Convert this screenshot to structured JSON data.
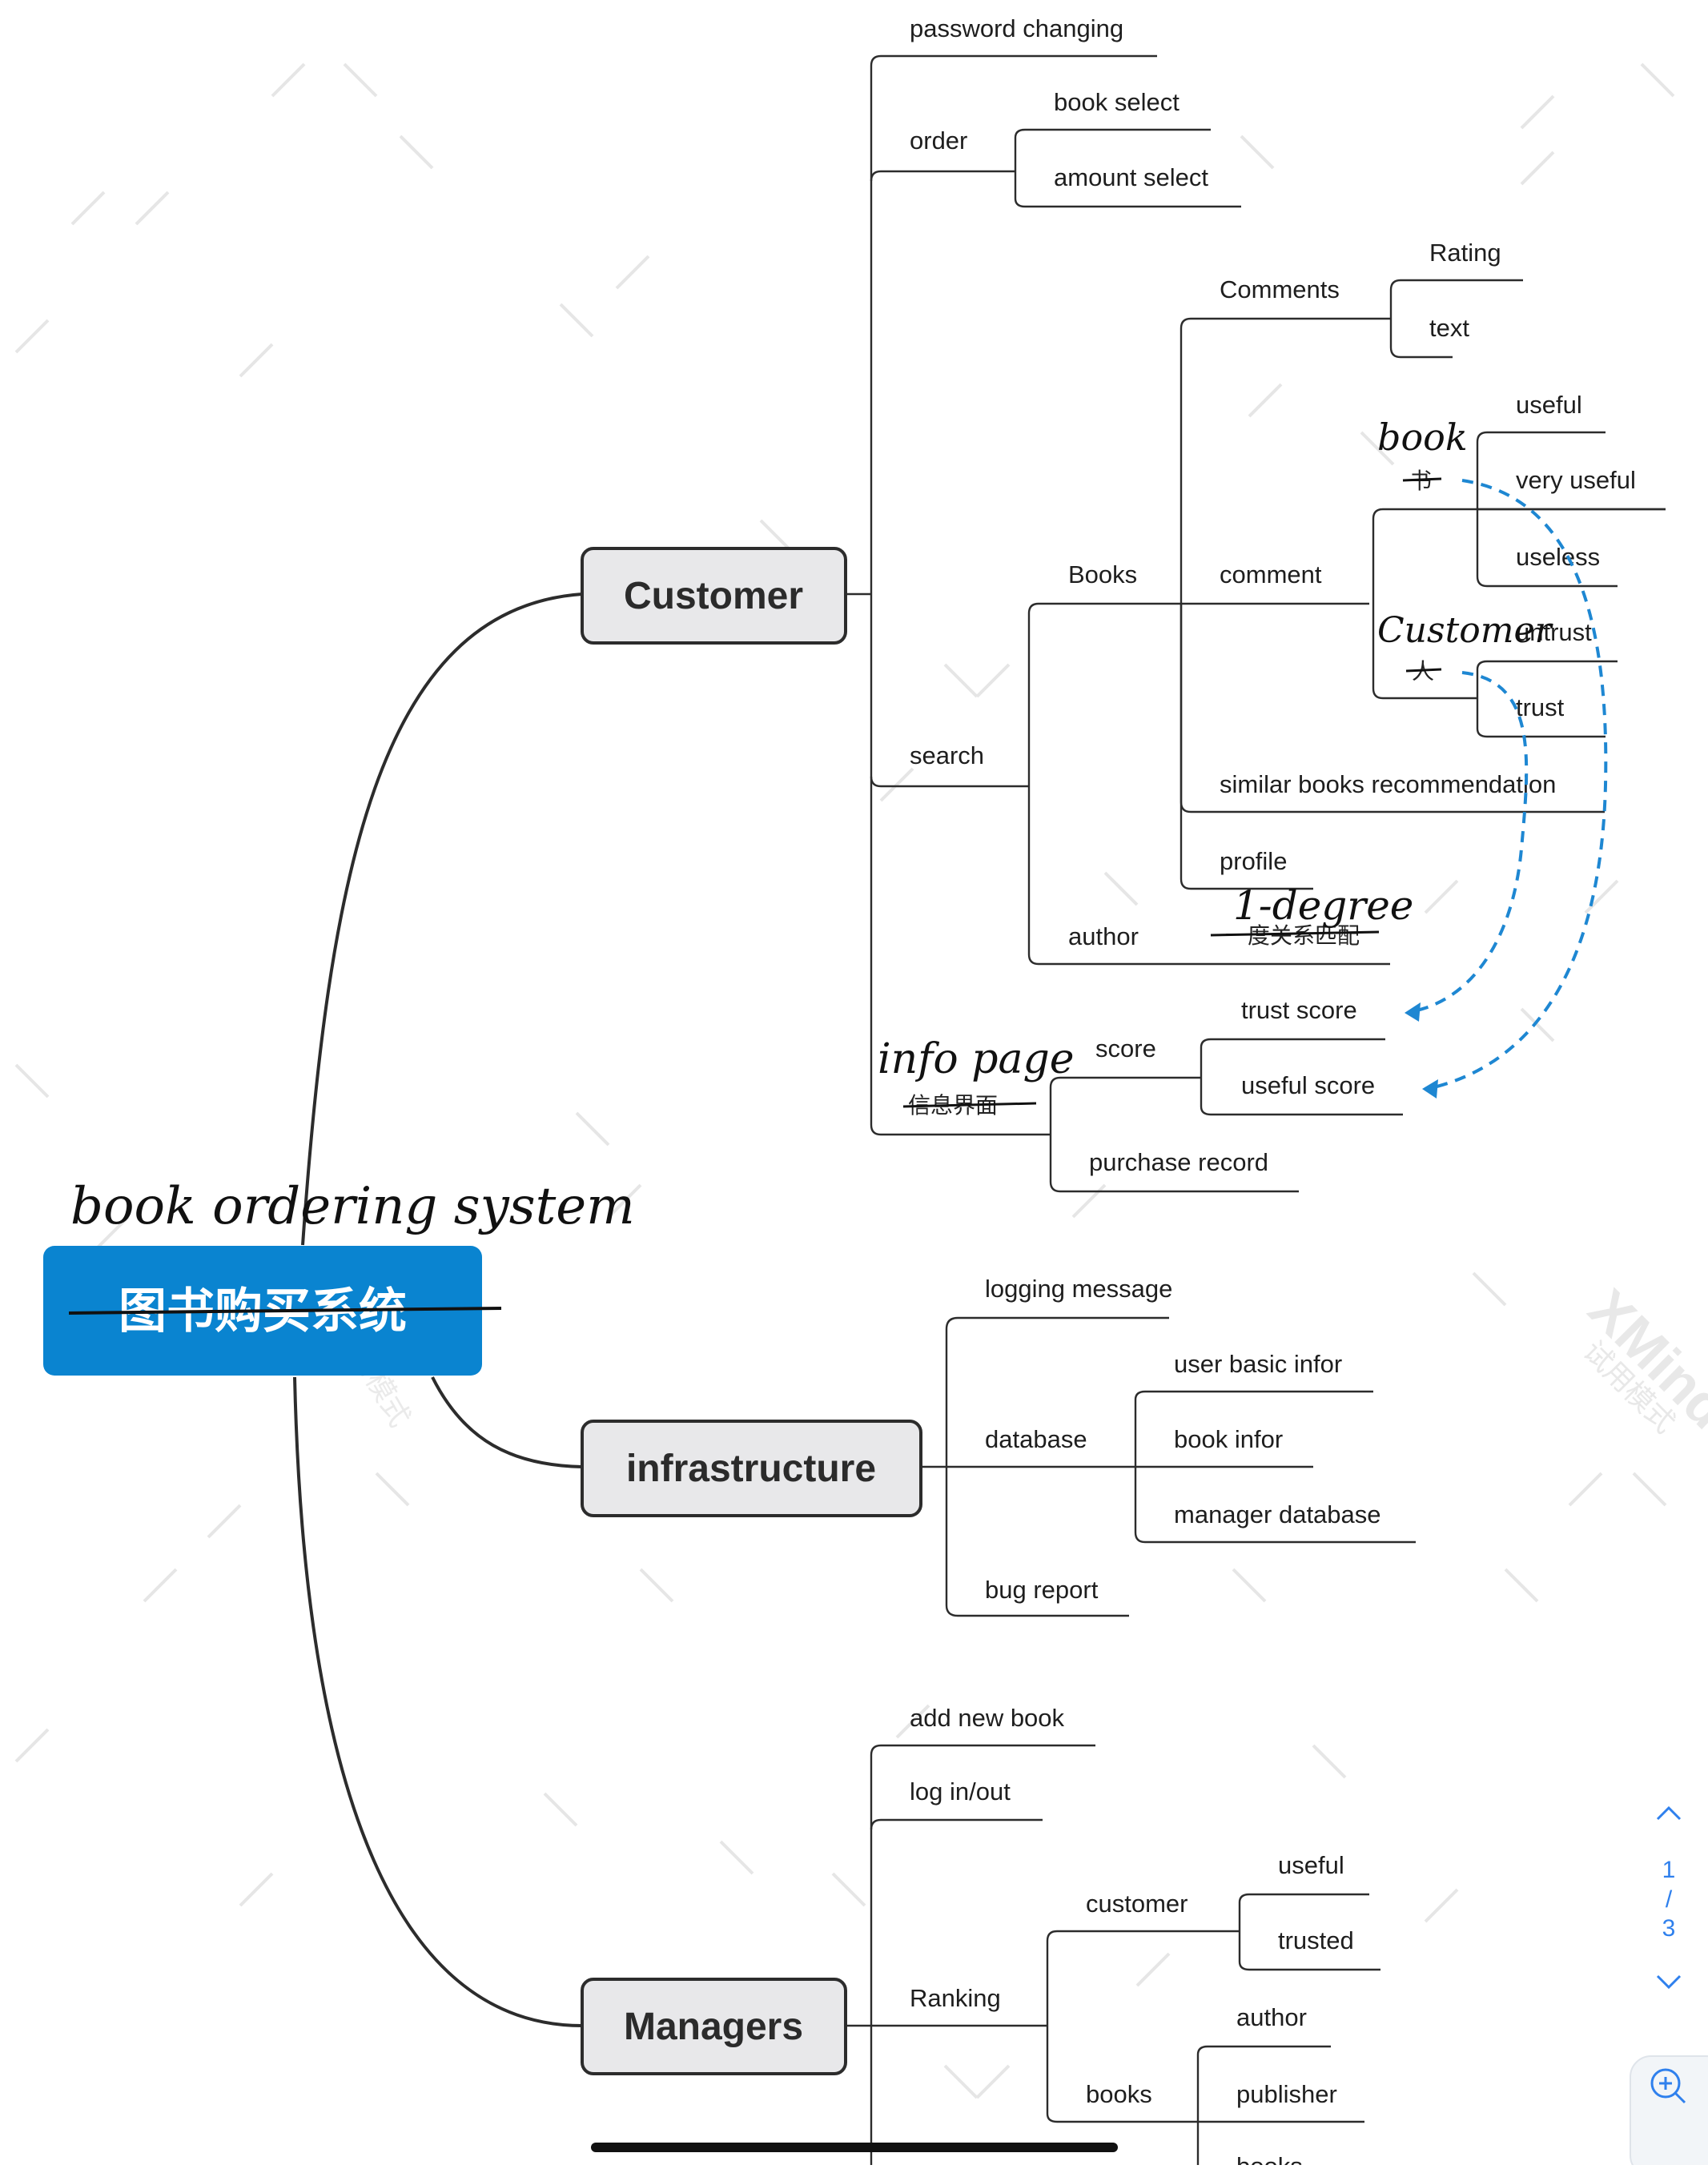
{
  "root": {
    "label": "图书购买系统",
    "annotation": "book ordering system",
    "color": "#0a84d0"
  },
  "watermark": {
    "brand": "XMind",
    "subtitle": "试用模式"
  },
  "customer": {
    "label": "Customer",
    "items": {
      "password_changing": "password changing",
      "order": "order",
      "book_select": "book select",
      "amount_select": "amount select",
      "search": "search",
      "books": "Books",
      "comments": "Comments",
      "rating": "Rating",
      "text": "text",
      "comment": "comment",
      "useful": "useful",
      "very_useful": "very useful",
      "useless": "useless",
      "untrust": "untrust",
      "trust": "trust",
      "similar_books": "similar books recommendation",
      "profile": "profile",
      "author": "author",
      "author_note": "一度关系匹配",
      "author_note_handwritten": "1-degree",
      "score": "score",
      "trust_score": "trust score",
      "useful_score": "useful score",
      "purchase_record": "purchase record",
      "info_page": "信息界面",
      "info_page_handwritten": "info page",
      "book_cn": "书",
      "book_handwritten": "book",
      "customer_cn": "人",
      "customer_handwritten": "Customer"
    }
  },
  "infrastructure": {
    "label": "infrastructure",
    "items": {
      "logging_message": "logging message",
      "database": "database",
      "user_basic_infor": "user basic infor",
      "book_infor": "book infor",
      "manager_database": "manager database",
      "bug_report": "bug report"
    }
  },
  "managers": {
    "label": "Managers",
    "items": {
      "add_new_book": "add new book",
      "log_in_out": "log in/out",
      "ranking": "Ranking",
      "customer": "customer",
      "useful": "useful",
      "trusted": "trusted",
      "books": "books",
      "author": "author",
      "publisher": "publisher",
      "books_cut": "books"
    }
  },
  "pager": {
    "current": "1",
    "separator": "/",
    "total": "3"
  },
  "icons": {
    "up": "chevron-up-icon",
    "down": "chevron-down-icon",
    "zoom": "zoom-in-icon"
  },
  "colors": {
    "accent": "#0a84d0",
    "link": "#1e87d2",
    "node_fill": "#e8e8ea",
    "line": "#2c2c2c"
  }
}
